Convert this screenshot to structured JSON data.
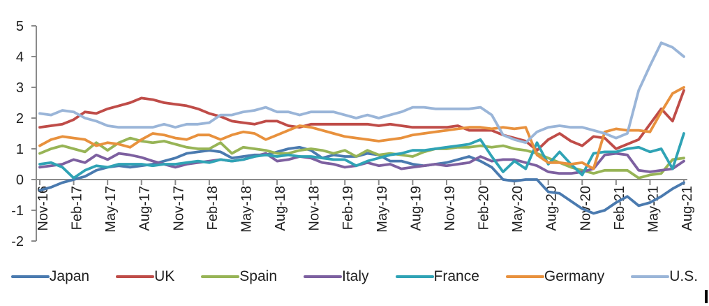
{
  "chart_data": {
    "type": "line",
    "title": "",
    "x_start": "Nov-16",
    "x_end": "Aug-21",
    "x_frequency": "monthly",
    "n_points": 58,
    "x_tick_labels": [
      "Nov-16",
      "Feb-17",
      "May-17",
      "Aug-17",
      "Nov-17",
      "Feb-18",
      "May-18",
      "Aug-18",
      "Nov-18",
      "Feb-19",
      "May-19",
      "Aug-19",
      "Nov-19",
      "Feb-20",
      "May-20",
      "Aug-20",
      "Nov-20",
      "Feb-21",
      "May-21",
      "Aug-21"
    ],
    "tick_every_months": 3,
    "y_ticks": [
      5,
      4,
      3,
      2,
      1,
      0,
      -1,
      -2
    ],
    "ylim": [
      -2,
      5
    ],
    "grid": false,
    "legend_position": "bottom",
    "axis_color": "#8a8a8a",
    "text_color": "#1f1f1f",
    "series": [
      {
        "name": "Japan",
        "color": "#4a7aaf",
        "values": [
          -0.35,
          -0.25,
          -0.1,
          0.0,
          0.1,
          0.3,
          0.4,
          0.45,
          0.4,
          0.45,
          0.5,
          0.6,
          0.7,
          0.85,
          0.9,
          0.95,
          0.9,
          0.7,
          0.75,
          0.8,
          0.8,
          0.9,
          1.0,
          1.05,
          0.95,
          0.7,
          0.8,
          0.75,
          0.75,
          0.85,
          0.8,
          0.6,
          0.6,
          0.5,
          0.45,
          0.5,
          0.55,
          0.65,
          0.75,
          0.6,
          0.4,
          0.0,
          -0.05,
          0.0,
          0.0,
          -0.4,
          -0.45,
          -0.7,
          -0.95,
          -1.1,
          -1.0,
          -0.75,
          -0.55,
          -0.85,
          -0.75,
          -0.55,
          -0.3,
          -0.1
        ]
      },
      {
        "name": "UK",
        "color": "#bf4c48",
        "values": [
          1.7,
          1.75,
          1.8,
          1.95,
          2.2,
          2.15,
          2.3,
          2.4,
          2.5,
          2.65,
          2.6,
          2.5,
          2.45,
          2.4,
          2.3,
          2.15,
          2.05,
          1.9,
          1.85,
          1.8,
          1.9,
          1.9,
          1.75,
          1.7,
          1.8,
          1.8,
          1.8,
          1.8,
          1.8,
          1.8,
          1.75,
          1.8,
          1.75,
          1.7,
          1.7,
          1.7,
          1.7,
          1.75,
          1.6,
          1.6,
          1.6,
          1.45,
          1.35,
          1.25,
          0.95,
          1.3,
          1.5,
          1.25,
          1.1,
          1.4,
          1.35,
          1.0,
          1.15,
          1.3,
          1.8,
          2.3,
          1.9,
          2.9
        ]
      },
      {
        "name": "Spain",
        "color": "#97b456",
        "values": [
          0.85,
          1.0,
          1.1,
          1.0,
          0.9,
          1.2,
          0.95,
          1.2,
          1.35,
          1.25,
          1.2,
          1.25,
          1.15,
          1.05,
          1.0,
          1.0,
          1.2,
          0.85,
          1.05,
          1.0,
          0.95,
          0.85,
          0.85,
          0.95,
          1.0,
          0.95,
          0.85,
          0.95,
          0.75,
          0.95,
          0.8,
          0.85,
          0.8,
          0.75,
          0.9,
          1.0,
          1.0,
          1.05,
          1.05,
          1.1,
          1.05,
          1.1,
          1.0,
          0.95,
          0.85,
          0.7,
          0.55,
          0.4,
          0.3,
          0.2,
          0.3,
          0.3,
          0.3,
          0.05,
          0.15,
          0.2,
          0.65,
          0.7
        ]
      },
      {
        "name": "Italy",
        "color": "#7d60a0",
        "values": [
          0.4,
          0.45,
          0.5,
          0.65,
          0.55,
          0.8,
          0.65,
          0.85,
          0.8,
          0.72,
          0.6,
          0.5,
          0.4,
          0.5,
          0.55,
          0.6,
          0.65,
          0.6,
          0.65,
          0.75,
          0.85,
          0.6,
          0.65,
          0.75,
          0.7,
          0.55,
          0.5,
          0.4,
          0.45,
          0.55,
          0.45,
          0.5,
          0.35,
          0.4,
          0.45,
          0.5,
          0.45,
          0.5,
          0.55,
          0.75,
          0.6,
          0.65,
          0.65,
          0.55,
          0.45,
          0.25,
          0.2,
          0.2,
          0.25,
          0.35,
          0.8,
          0.85,
          0.8,
          0.3,
          0.25,
          0.3,
          0.35,
          0.6
        ]
      },
      {
        "name": "France",
        "color": "#2fa3b5",
        "values": [
          0.5,
          0.55,
          0.4,
          0.05,
          0.3,
          0.45,
          0.4,
          0.5,
          0.5,
          0.5,
          0.45,
          0.5,
          0.5,
          0.55,
          0.6,
          0.55,
          0.65,
          0.6,
          0.65,
          0.75,
          0.8,
          0.75,
          0.8,
          0.75,
          0.75,
          0.7,
          0.65,
          0.65,
          0.45,
          0.6,
          0.7,
          0.8,
          0.85,
          0.95,
          0.95,
          1.0,
          1.05,
          1.1,
          1.15,
          1.3,
          0.75,
          0.25,
          0.6,
          0.35,
          1.2,
          0.5,
          0.9,
          0.5,
          0.15,
          0.85,
          0.9,
          0.9,
          1.0,
          1.05,
          0.9,
          1.0,
          0.35,
          1.5
        ]
      },
      {
        "name": "Germany",
        "color": "#e8913d",
        "values": [
          1.1,
          1.3,
          1.4,
          1.35,
          1.3,
          1.1,
          1.2,
          1.15,
          1.05,
          1.3,
          1.5,
          1.45,
          1.35,
          1.3,
          1.45,
          1.45,
          1.3,
          1.45,
          1.55,
          1.5,
          1.3,
          1.45,
          1.6,
          1.75,
          1.7,
          1.6,
          1.5,
          1.4,
          1.35,
          1.3,
          1.25,
          1.3,
          1.35,
          1.45,
          1.5,
          1.55,
          1.6,
          1.65,
          1.7,
          1.7,
          1.65,
          1.7,
          1.65,
          1.7,
          0.8,
          0.55,
          0.55,
          0.5,
          0.55,
          0.35,
          1.55,
          1.65,
          1.6,
          1.6,
          1.55,
          2.2,
          2.8,
          3.0
        ]
      },
      {
        "name": "U.S.",
        "color": "#9ab5d8",
        "values": [
          2.15,
          2.1,
          2.25,
          2.2,
          2.0,
          1.9,
          1.75,
          1.7,
          1.7,
          1.7,
          1.7,
          1.8,
          1.7,
          1.8,
          1.8,
          1.85,
          2.1,
          2.1,
          2.2,
          2.25,
          2.35,
          2.2,
          2.2,
          2.1,
          2.2,
          2.2,
          2.2,
          2.1,
          2.0,
          2.1,
          2.0,
          2.1,
          2.2,
          2.35,
          2.35,
          2.3,
          2.3,
          2.3,
          2.3,
          2.35,
          2.1,
          1.45,
          1.3,
          1.2,
          1.55,
          1.7,
          1.75,
          1.7,
          1.7,
          1.6,
          1.5,
          1.35,
          1.5,
          2.9,
          3.7,
          4.45,
          4.3,
          4.0
        ]
      }
    ]
  },
  "legend": {
    "items": [
      {
        "label": "Japan",
        "color": "#4a7aaf"
      },
      {
        "label": "UK",
        "color": "#bf4c48"
      },
      {
        "label": "Spain",
        "color": "#97b456"
      },
      {
        "label": "Italy",
        "color": "#7d60a0"
      },
      {
        "label": "France",
        "color": "#2fa3b5"
      },
      {
        "label": "Germany",
        "color": "#e8913d"
      },
      {
        "label": "U.S.",
        "color": "#9ab5d8"
      }
    ]
  },
  "artifact": {
    "description": "black text-cursor bar, bottom-right corner",
    "color": "#000000"
  }
}
